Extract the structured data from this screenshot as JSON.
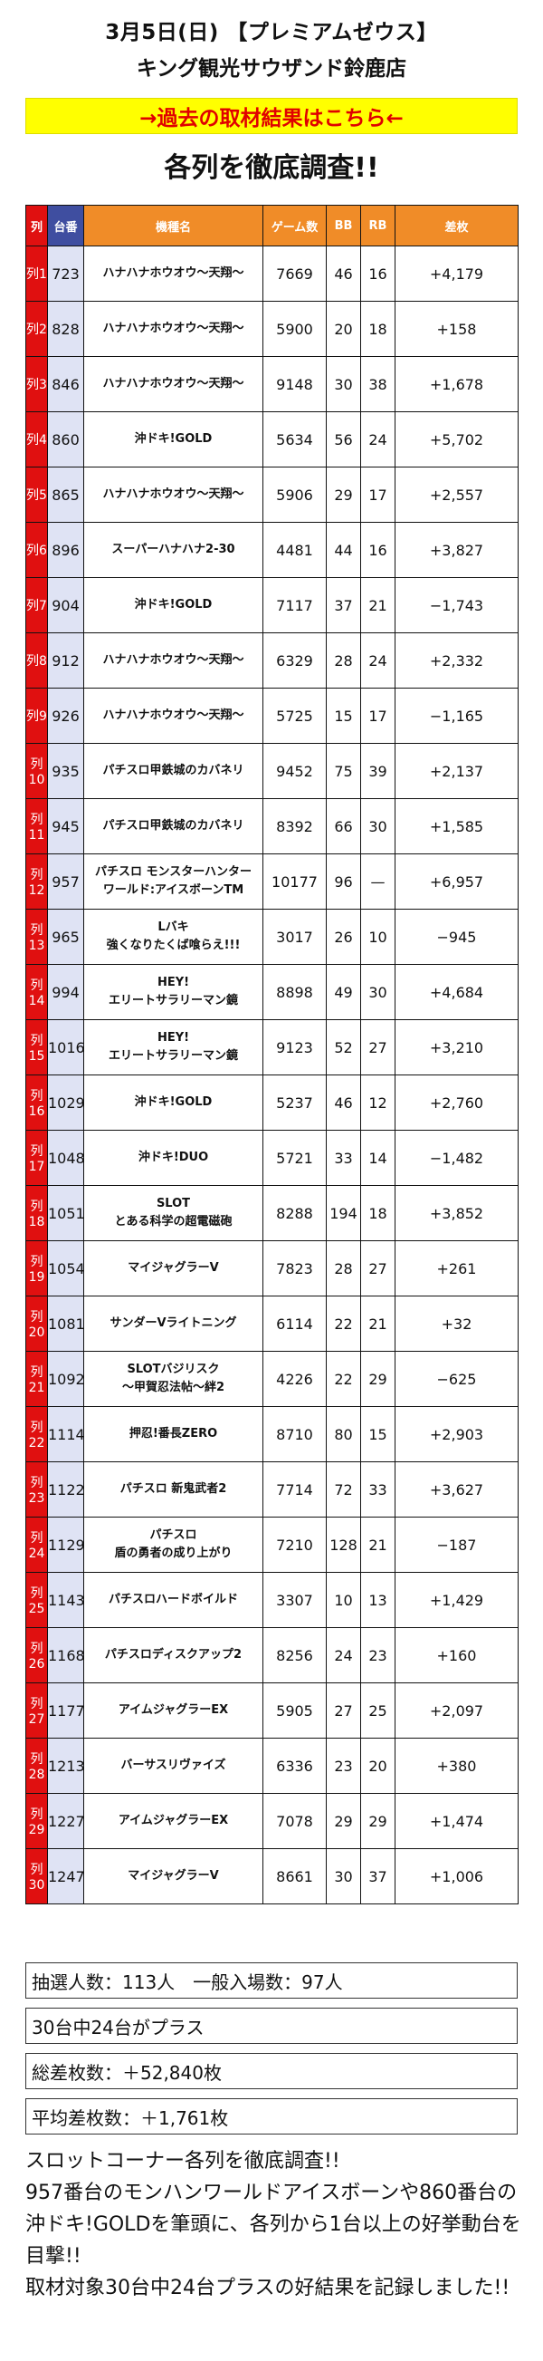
{
  "header": {
    "date_store_title": "3月5日(日) 【プレミアムゼウス】",
    "store_name": "キング観光サウザンド鈴鹿店"
  },
  "banner": {
    "label": "→過去の取材結果はこちら←",
    "bg_color": "#ffff00",
    "text_color": "#e00000"
  },
  "main_heading": "各列を徹底調査!!",
  "table": {
    "headers": {
      "row": "列",
      "unit": "台番",
      "model": "機種名",
      "games": "ゲーム数",
      "bb": "BB",
      "rb": "RB",
      "diff": "差枚"
    },
    "header_colors": {
      "row": "#e01010",
      "unit": "#3f4ea0",
      "rest": "#f08c28"
    },
    "rows": [
      {
        "row": "列1",
        "unit": "723",
        "model": "ハナハナホウオウ〜天翔〜",
        "games": "7669",
        "bb": "46",
        "rb": "16",
        "diff": "+4,179"
      },
      {
        "row": "列2",
        "unit": "828",
        "model": "ハナハナホウオウ〜天翔〜",
        "games": "5900",
        "bb": "20",
        "rb": "18",
        "diff": "+158"
      },
      {
        "row": "列3",
        "unit": "846",
        "model": "ハナハナホウオウ〜天翔〜",
        "games": "9148",
        "bb": "30",
        "rb": "38",
        "diff": "+1,678"
      },
      {
        "row": "列4",
        "unit": "860",
        "model": "沖ドキ!GOLD",
        "games": "5634",
        "bb": "56",
        "rb": "24",
        "diff": "+5,702"
      },
      {
        "row": "列5",
        "unit": "865",
        "model": "ハナハナホウオウ〜天翔〜",
        "games": "5906",
        "bb": "29",
        "rb": "17",
        "diff": "+2,557"
      },
      {
        "row": "列6",
        "unit": "896",
        "model": "スーパーハナハナ2-30",
        "games": "4481",
        "bb": "44",
        "rb": "16",
        "diff": "+3,827"
      },
      {
        "row": "列7",
        "unit": "904",
        "model": "沖ドキ!GOLD",
        "games": "7117",
        "bb": "37",
        "rb": "21",
        "diff": "−1,743"
      },
      {
        "row": "列8",
        "unit": "912",
        "model": "ハナハナホウオウ〜天翔〜",
        "games": "6329",
        "bb": "28",
        "rb": "24",
        "diff": "+2,332"
      },
      {
        "row": "列9",
        "unit": "926",
        "model": "ハナハナホウオウ〜天翔〜",
        "games": "5725",
        "bb": "15",
        "rb": "17",
        "diff": "−1,165"
      },
      {
        "row": "列10",
        "unit": "935",
        "model": "パチスロ甲鉄城のカバネリ",
        "games": "9452",
        "bb": "75",
        "rb": "39",
        "diff": "+2,137"
      },
      {
        "row": "列11",
        "unit": "945",
        "model": "パチスロ甲鉄城のカバネリ",
        "games": "8392",
        "bb": "66",
        "rb": "30",
        "diff": "+1,585"
      },
      {
        "row": "列12",
        "unit": "957",
        "model": "パチスロ モンスターハンター\nワールド:アイスボーンTM",
        "games": "10177",
        "bb": "96",
        "rb": "—",
        "diff": "+6,957"
      },
      {
        "row": "列13",
        "unit": "965",
        "model": "Lバキ\n強くなりたくば喰らえ!!!",
        "games": "3017",
        "bb": "26",
        "rb": "10",
        "diff": "−945"
      },
      {
        "row": "列14",
        "unit": "994",
        "model": "HEY!\nエリートサラリーマン鏡",
        "games": "8898",
        "bb": "49",
        "rb": "30",
        "diff": "+4,684"
      },
      {
        "row": "列15",
        "unit": "1016",
        "model": "HEY!\nエリートサラリーマン鏡",
        "games": "9123",
        "bb": "52",
        "rb": "27",
        "diff": "+3,210"
      },
      {
        "row": "列16",
        "unit": "1029",
        "model": "沖ドキ!GOLD",
        "games": "5237",
        "bb": "46",
        "rb": "12",
        "diff": "+2,760"
      },
      {
        "row": "列17",
        "unit": "1048",
        "model": "沖ドキ!DUO",
        "games": "5721",
        "bb": "33",
        "rb": "14",
        "diff": "−1,482"
      },
      {
        "row": "列18",
        "unit": "1051",
        "model": "SLOT\nとある科学の超電磁砲",
        "games": "8288",
        "bb": "194",
        "rb": "18",
        "diff": "+3,852"
      },
      {
        "row": "列19",
        "unit": "1054",
        "model": "マイジャグラーV",
        "games": "7823",
        "bb": "28",
        "rb": "27",
        "diff": "+261"
      },
      {
        "row": "列20",
        "unit": "1081",
        "model": "サンダーVライトニング",
        "games": "6114",
        "bb": "22",
        "rb": "21",
        "diff": "+32"
      },
      {
        "row": "列21",
        "unit": "1092",
        "model": "SLOTバジリスク\n〜甲賀忍法帖〜絆2",
        "games": "4226",
        "bb": "22",
        "rb": "29",
        "diff": "−625"
      },
      {
        "row": "列22",
        "unit": "1114",
        "model": "押忍!番長ZERO",
        "games": "8710",
        "bb": "80",
        "rb": "15",
        "diff": "+2,903"
      },
      {
        "row": "列23",
        "unit": "1122",
        "model": "パチスロ 新鬼武者2",
        "games": "7714",
        "bb": "72",
        "rb": "33",
        "diff": "+3,627"
      },
      {
        "row": "列24",
        "unit": "1129",
        "model": "パチスロ\n盾の勇者の成り上がり",
        "games": "7210",
        "bb": "128",
        "rb": "21",
        "diff": "−187"
      },
      {
        "row": "列25",
        "unit": "1143",
        "model": "パチスロハードボイルド",
        "games": "3307",
        "bb": "10",
        "rb": "13",
        "diff": "+1,429"
      },
      {
        "row": "列26",
        "unit": "1168",
        "model": "パチスロディスクアップ2",
        "games": "8256",
        "bb": "24",
        "rb": "23",
        "diff": "+160"
      },
      {
        "row": "列27",
        "unit": "1177",
        "model": "アイムジャグラーEX",
        "games": "5905",
        "bb": "27",
        "rb": "25",
        "diff": "+2,097"
      },
      {
        "row": "列28",
        "unit": "1213",
        "model": "バーサスリヴァイズ",
        "games": "6336",
        "bb": "23",
        "rb": "20",
        "diff": "+380"
      },
      {
        "row": "列29",
        "unit": "1227",
        "model": "アイムジャグラーEX",
        "games": "7078",
        "bb": "29",
        "rb": "29",
        "diff": "+1,474"
      },
      {
        "row": "列30",
        "unit": "1247",
        "model": "マイジャグラーV",
        "games": "8661",
        "bb": "30",
        "rb": "37",
        "diff": "+1,006"
      }
    ]
  },
  "summary": {
    "attendance": "抽選人数：113人　一般入場数：97人",
    "plus_count": "30台中24台がプラス",
    "total_diff": "総差枚数：＋52,840枚",
    "avg_diff": "平均差枚数：＋1,761枚"
  },
  "closing": {
    "lines": [
      "スロットコーナー各列を徹底調査!!",
      "957番台のモンハンワールドアイスボーンや860番台の沖ドキ!GOLDを筆頭に、各列から1台以上の好挙動台を目撃!!",
      "取材対象30台中24台プラスの好結果を記録しました!!"
    ]
  }
}
